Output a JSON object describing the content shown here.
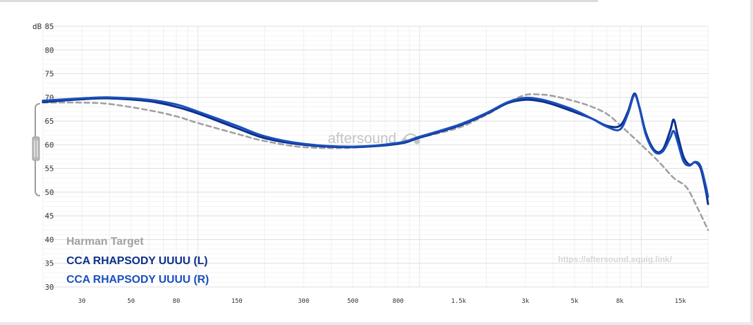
{
  "chart_data": {
    "type": "line",
    "ylabel": "dB",
    "ylim": [
      30,
      85
    ],
    "xscale": "log",
    "xlim": [
      20,
      20000
    ],
    "yticks": [
      "85",
      "80",
      "75",
      "70",
      "65",
      "60",
      "55",
      "50",
      "45",
      "40",
      "35",
      "30"
    ],
    "xticks": [
      {
        "label": "30",
        "value": 30
      },
      {
        "label": "50",
        "value": 50
      },
      {
        "label": "80",
        "value": 80
      },
      {
        "label": "150",
        "value": 150
      },
      {
        "label": "300",
        "value": 300
      },
      {
        "label": "500",
        "value": 500
      },
      {
        "label": "800",
        "value": 800
      },
      {
        "label": "1.5k",
        "value": 1500
      },
      {
        "label": "3k",
        "value": 3000
      },
      {
        "label": "5k",
        "value": 5000
      },
      {
        "label": "8k",
        "value": 8000
      },
      {
        "label": "15k",
        "value": 15000
      }
    ],
    "grid": true,
    "legend_placement": "bottom-left",
    "series": [
      {
        "name": "Harman Target",
        "color": "#a0a0a4",
        "dashed": true,
        "points": [
          [
            20,
            68.9
          ],
          [
            30,
            68.9
          ],
          [
            40,
            68.6
          ],
          [
            60,
            67.3
          ],
          [
            80,
            66.0
          ],
          [
            100,
            64.6
          ],
          [
            150,
            62.3
          ],
          [
            200,
            60.8
          ],
          [
            300,
            59.5
          ],
          [
            500,
            59.4
          ],
          [
            800,
            60.3
          ],
          [
            1000,
            61.5
          ],
          [
            1500,
            63.6
          ],
          [
            2000,
            66.3
          ],
          [
            2500,
            68.9
          ],
          [
            3000,
            70.5
          ],
          [
            3500,
            70.6
          ],
          [
            4000,
            70.3
          ],
          [
            5000,
            69.2
          ],
          [
            6000,
            68.0
          ],
          [
            7000,
            66.5
          ],
          [
            8000,
            64.2
          ],
          [
            9000,
            62.0
          ],
          [
            10000,
            60.0
          ],
          [
            12000,
            56.4
          ],
          [
            14000,
            53.0
          ],
          [
            16000,
            51.0
          ],
          [
            18000,
            46.5
          ],
          [
            20000,
            42.0
          ]
        ]
      },
      {
        "name": "CCA RHAPSODY UUUU (L)",
        "color": "#0b2f8a",
        "dashed": false,
        "points": [
          [
            20,
            69.0
          ],
          [
            30,
            69.6
          ],
          [
            40,
            69.8
          ],
          [
            60,
            69.2
          ],
          [
            80,
            68.0
          ],
          [
            100,
            66.6
          ],
          [
            150,
            63.5
          ],
          [
            200,
            61.4
          ],
          [
            300,
            60.0
          ],
          [
            500,
            59.5
          ],
          [
            800,
            60.2
          ],
          [
            1000,
            61.5
          ],
          [
            1500,
            64.0
          ],
          [
            2000,
            66.5
          ],
          [
            2500,
            68.8
          ],
          [
            3000,
            69.5
          ],
          [
            3500,
            69.2
          ],
          [
            4000,
            68.5
          ],
          [
            5000,
            66.9
          ],
          [
            6000,
            65.5
          ],
          [
            7000,
            64.0
          ],
          [
            8000,
            64.0
          ],
          [
            8700,
            67.0
          ],
          [
            9300,
            70.8
          ],
          [
            9800,
            68.0
          ],
          [
            10500,
            62.5
          ],
          [
            11500,
            58.8
          ],
          [
            12500,
            59.0
          ],
          [
            13500,
            63.0
          ],
          [
            14000,
            65.3
          ],
          [
            14600,
            62.0
          ],
          [
            15500,
            57.5
          ],
          [
            16500,
            55.8
          ],
          [
            17500,
            56.3
          ],
          [
            18500,
            55.0
          ],
          [
            19500,
            50.5
          ],
          [
            20000,
            47.5
          ]
        ]
      },
      {
        "name": "CCA RHAPSODY UUUU (R)",
        "color": "#1a4fbf",
        "dashed": false,
        "points": [
          [
            20,
            69.3
          ],
          [
            30,
            69.8
          ],
          [
            40,
            70.0
          ],
          [
            60,
            69.5
          ],
          [
            80,
            68.5
          ],
          [
            100,
            67.0
          ],
          [
            150,
            64.0
          ],
          [
            200,
            61.8
          ],
          [
            300,
            60.2
          ],
          [
            500,
            59.6
          ],
          [
            800,
            60.4
          ],
          [
            1000,
            61.7
          ],
          [
            1500,
            64.2
          ],
          [
            2000,
            66.7
          ],
          [
            2500,
            69.0
          ],
          [
            3000,
            69.9
          ],
          [
            3500,
            69.6
          ],
          [
            4000,
            68.9
          ],
          [
            5000,
            67.3
          ],
          [
            6000,
            65.5
          ],
          [
            7000,
            63.8
          ],
          [
            8000,
            63.2
          ],
          [
            8700,
            66.5
          ],
          [
            9300,
            70.5
          ],
          [
            9800,
            67.8
          ],
          [
            10500,
            62.0
          ],
          [
            11500,
            58.5
          ],
          [
            12500,
            58.6
          ],
          [
            13500,
            61.5
          ],
          [
            14000,
            62.9
          ],
          [
            14600,
            60.5
          ],
          [
            15500,
            56.5
          ],
          [
            16500,
            55.6
          ],
          [
            17500,
            56.4
          ],
          [
            18500,
            55.5
          ],
          [
            19500,
            51.5
          ],
          [
            20000,
            49.0
          ]
        ]
      }
    ],
    "watermark": "aftersound",
    "url_label": "https://aftersound.squig.link/"
  }
}
